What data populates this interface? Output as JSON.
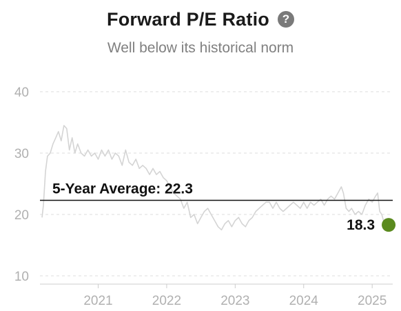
{
  "header": {
    "title": "Forward P/E Ratio",
    "help_icon": "question-circle-icon",
    "subtitle": "Well below its historical norm"
  },
  "chart_data": {
    "type": "line",
    "title": "Forward P/E Ratio",
    "subtitle": "Well below its historical norm",
    "xlabel": "",
    "ylabel": "",
    "ylim": [
      10,
      40
    ],
    "xlim": [
      2020.15,
      2025.3
    ],
    "yticks": [
      10,
      20,
      30,
      40
    ],
    "xticks": [
      {
        "value": 2021,
        "label": "2021"
      },
      {
        "value": 2022,
        "label": "2022"
      },
      {
        "value": 2023,
        "label": "2023"
      },
      {
        "value": 2024,
        "label": "2024"
      },
      {
        "value": 2025,
        "label": "2025"
      }
    ],
    "grid": "horizontal-dashed",
    "series": [
      {
        "color": "#d4d4d4",
        "points": [
          [
            2020.18,
            19.5
          ],
          [
            2020.2,
            21.5
          ],
          [
            2020.23,
            27.0
          ],
          [
            2020.26,
            29.5
          ],
          [
            2020.3,
            30.0
          ],
          [
            2020.34,
            31.5
          ],
          [
            2020.38,
            32.5
          ],
          [
            2020.42,
            33.5
          ],
          [
            2020.46,
            32.0
          ],
          [
            2020.5,
            34.5
          ],
          [
            2020.54,
            34.0
          ],
          [
            2020.58,
            30.5
          ],
          [
            2020.62,
            32.5
          ],
          [
            2020.66,
            30.0
          ],
          [
            2020.7,
            31.5
          ],
          [
            2020.75,
            30.0
          ],
          [
            2020.8,
            29.5
          ],
          [
            2020.85,
            30.5
          ],
          [
            2020.9,
            29.5
          ],
          [
            2020.95,
            30.0
          ],
          [
            2021.0,
            29.0
          ],
          [
            2021.05,
            30.5
          ],
          [
            2021.1,
            29.5
          ],
          [
            2021.15,
            30.5
          ],
          [
            2021.2,
            29.0
          ],
          [
            2021.25,
            30.0
          ],
          [
            2021.3,
            29.5
          ],
          [
            2021.35,
            28.0
          ],
          [
            2021.4,
            30.5
          ],
          [
            2021.45,
            28.5
          ],
          [
            2021.5,
            28.0
          ],
          [
            2021.55,
            29.0
          ],
          [
            2021.6,
            27.5
          ],
          [
            2021.65,
            28.0
          ],
          [
            2021.7,
            27.5
          ],
          [
            2021.75,
            26.5
          ],
          [
            2021.8,
            27.5
          ],
          [
            2021.85,
            26.5
          ],
          [
            2021.9,
            27.0
          ],
          [
            2021.95,
            26.0
          ],
          [
            2022.0,
            25.5
          ],
          [
            2022.05,
            24.5
          ],
          [
            2022.1,
            23.5
          ],
          [
            2022.15,
            23.0
          ],
          [
            2022.2,
            22.5
          ],
          [
            2022.25,
            21.0
          ],
          [
            2022.3,
            22.0
          ],
          [
            2022.35,
            19.5
          ],
          [
            2022.4,
            20.0
          ],
          [
            2022.45,
            18.5
          ],
          [
            2022.5,
            19.5
          ],
          [
            2022.55,
            20.5
          ],
          [
            2022.6,
            21.0
          ],
          [
            2022.65,
            20.0
          ],
          [
            2022.7,
            19.0
          ],
          [
            2022.75,
            18.0
          ],
          [
            2022.8,
            17.5
          ],
          [
            2022.85,
            18.5
          ],
          [
            2022.9,
            19.0
          ],
          [
            2022.95,
            18.0
          ],
          [
            2023.0,
            19.0
          ],
          [
            2023.05,
            19.5
          ],
          [
            2023.1,
            18.5
          ],
          [
            2023.15,
            18.0
          ],
          [
            2023.2,
            19.0
          ],
          [
            2023.25,
            19.5
          ],
          [
            2023.3,
            20.5
          ],
          [
            2023.35,
            21.0
          ],
          [
            2023.4,
            21.5
          ],
          [
            2023.45,
            22.0
          ],
          [
            2023.5,
            22.0
          ],
          [
            2023.55,
            21.0
          ],
          [
            2023.6,
            22.0
          ],
          [
            2023.65,
            21.0
          ],
          [
            2023.7,
            20.5
          ],
          [
            2023.75,
            21.0
          ],
          [
            2023.8,
            21.5
          ],
          [
            2023.85,
            22.0
          ],
          [
            2023.9,
            21.5
          ],
          [
            2023.95,
            21.0
          ],
          [
            2024.0,
            22.0
          ],
          [
            2024.05,
            21.0
          ],
          [
            2024.1,
            22.0
          ],
          [
            2024.15,
            21.5
          ],
          [
            2024.2,
            22.0
          ],
          [
            2024.25,
            22.5
          ],
          [
            2024.3,
            21.5
          ],
          [
            2024.35,
            22.5
          ],
          [
            2024.4,
            23.0
          ],
          [
            2024.45,
            22.5
          ],
          [
            2024.5,
            23.5
          ],
          [
            2024.55,
            24.5
          ],
          [
            2024.58,
            23.5
          ],
          [
            2024.62,
            21.0
          ],
          [
            2024.66,
            20.5
          ],
          [
            2024.7,
            21.0
          ],
          [
            2024.75,
            20.0
          ],
          [
            2024.8,
            20.5
          ],
          [
            2024.85,
            20.0
          ],
          [
            2024.9,
            21.5
          ],
          [
            2024.95,
            22.5
          ],
          [
            2025.0,
            22.0
          ],
          [
            2025.05,
            23.0
          ],
          [
            2025.08,
            23.5
          ],
          [
            2025.11,
            20.5
          ],
          [
            2025.14,
            20.0
          ],
          [
            2025.17,
            18.8
          ]
        ]
      }
    ],
    "reference_line": {
      "value": 22.3,
      "label": "5-Year Average: 22.3",
      "color": "#111111"
    },
    "current": {
      "x": 2025.24,
      "value": 18.3,
      "label": "18.3",
      "color": "#5a8a1e"
    }
  }
}
